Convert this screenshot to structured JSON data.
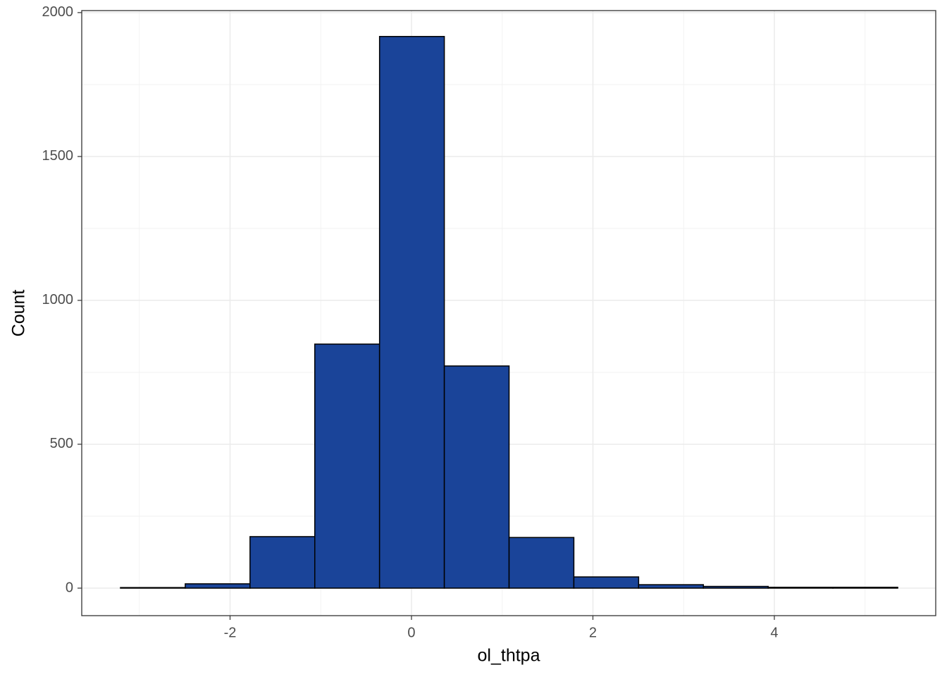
{
  "chart_data": {
    "type": "histogram",
    "x_label": "ol_thtpa",
    "y_label": "Count",
    "bins": [
      -3.208,
      -2.494,
      -1.78,
      -1.066,
      -0.352,
      0.362,
      1.076,
      1.79,
      2.504,
      3.218,
      3.932,
      4.646,
      5.36
    ],
    "counts": [
      2,
      15,
      179,
      848,
      1917,
      772,
      176,
      39,
      12,
      6,
      3,
      3
    ],
    "color": "#1a4499",
    "edge_color": "#000000",
    "xlim": [
      -3.635,
      5.779
    ],
    "xticks": [
      -2,
      0,
      2,
      4
    ],
    "ylim": [
      -95.6,
      2007
    ],
    "yticks": [
      0,
      500,
      1000,
      1500,
      2000
    ],
    "grid": true,
    "minor_grid": true
  }
}
